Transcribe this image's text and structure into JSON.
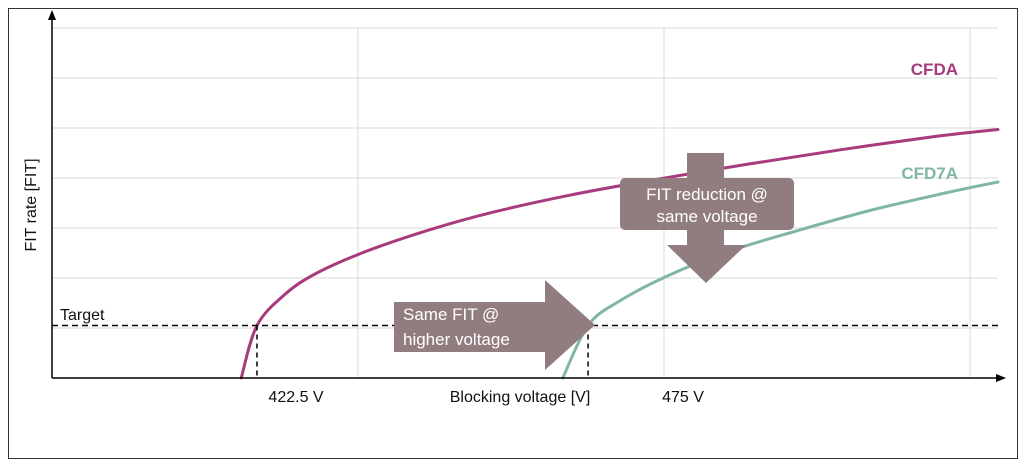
{
  "chart_data": {
    "type": "line",
    "xlabel": "Blocking voltage [V]",
    "ylabel": "FIT rate [FIT]",
    "x_tick_labels": [
      "422.5 V",
      "475 V"
    ],
    "x_ticks": [
      422.5,
      475
    ],
    "xlim": [
      390,
      540
    ],
    "ylim": [
      0,
      100
    ],
    "grid": true,
    "target": {
      "label": "Target",
      "value": 15
    },
    "series": [
      {
        "name": "CFDA",
        "color": "#a83a7e",
        "x": [
          420.0,
          422.5,
          427.0,
          432.0,
          440.0,
          450.0,
          460.0,
          472.0,
          485.0,
          500.0,
          515.0,
          530.0,
          540.0
        ],
        "y": [
          0.0,
          15.0,
          24.0,
          30.0,
          36.3,
          42.4,
          47.4,
          52.2,
          56.5,
          61.0,
          65.2,
          69.0,
          71.0
        ]
      },
      {
        "name": "CFD7A",
        "color": "#7fb7a2",
        "x": [
          471.0,
          475.0,
          480.0,
          488.0,
          497.0,
          508.0,
          520.0,
          532.0,
          540.0
        ],
        "y": [
          0.0,
          15.0,
          22.0,
          29.5,
          36.0,
          42.0,
          48.0,
          53.0,
          56.0
        ]
      }
    ],
    "annotations": [
      {
        "lines": [
          "FIT reduction @",
          "same voltage"
        ],
        "arrow": "down"
      },
      {
        "lines": [
          "Same FIT @",
          "higher voltage"
        ],
        "arrow": "right"
      }
    ],
    "colors": {
      "box": "#917d7f",
      "axis": "#000000",
      "grid": "#d9d9d9"
    }
  }
}
